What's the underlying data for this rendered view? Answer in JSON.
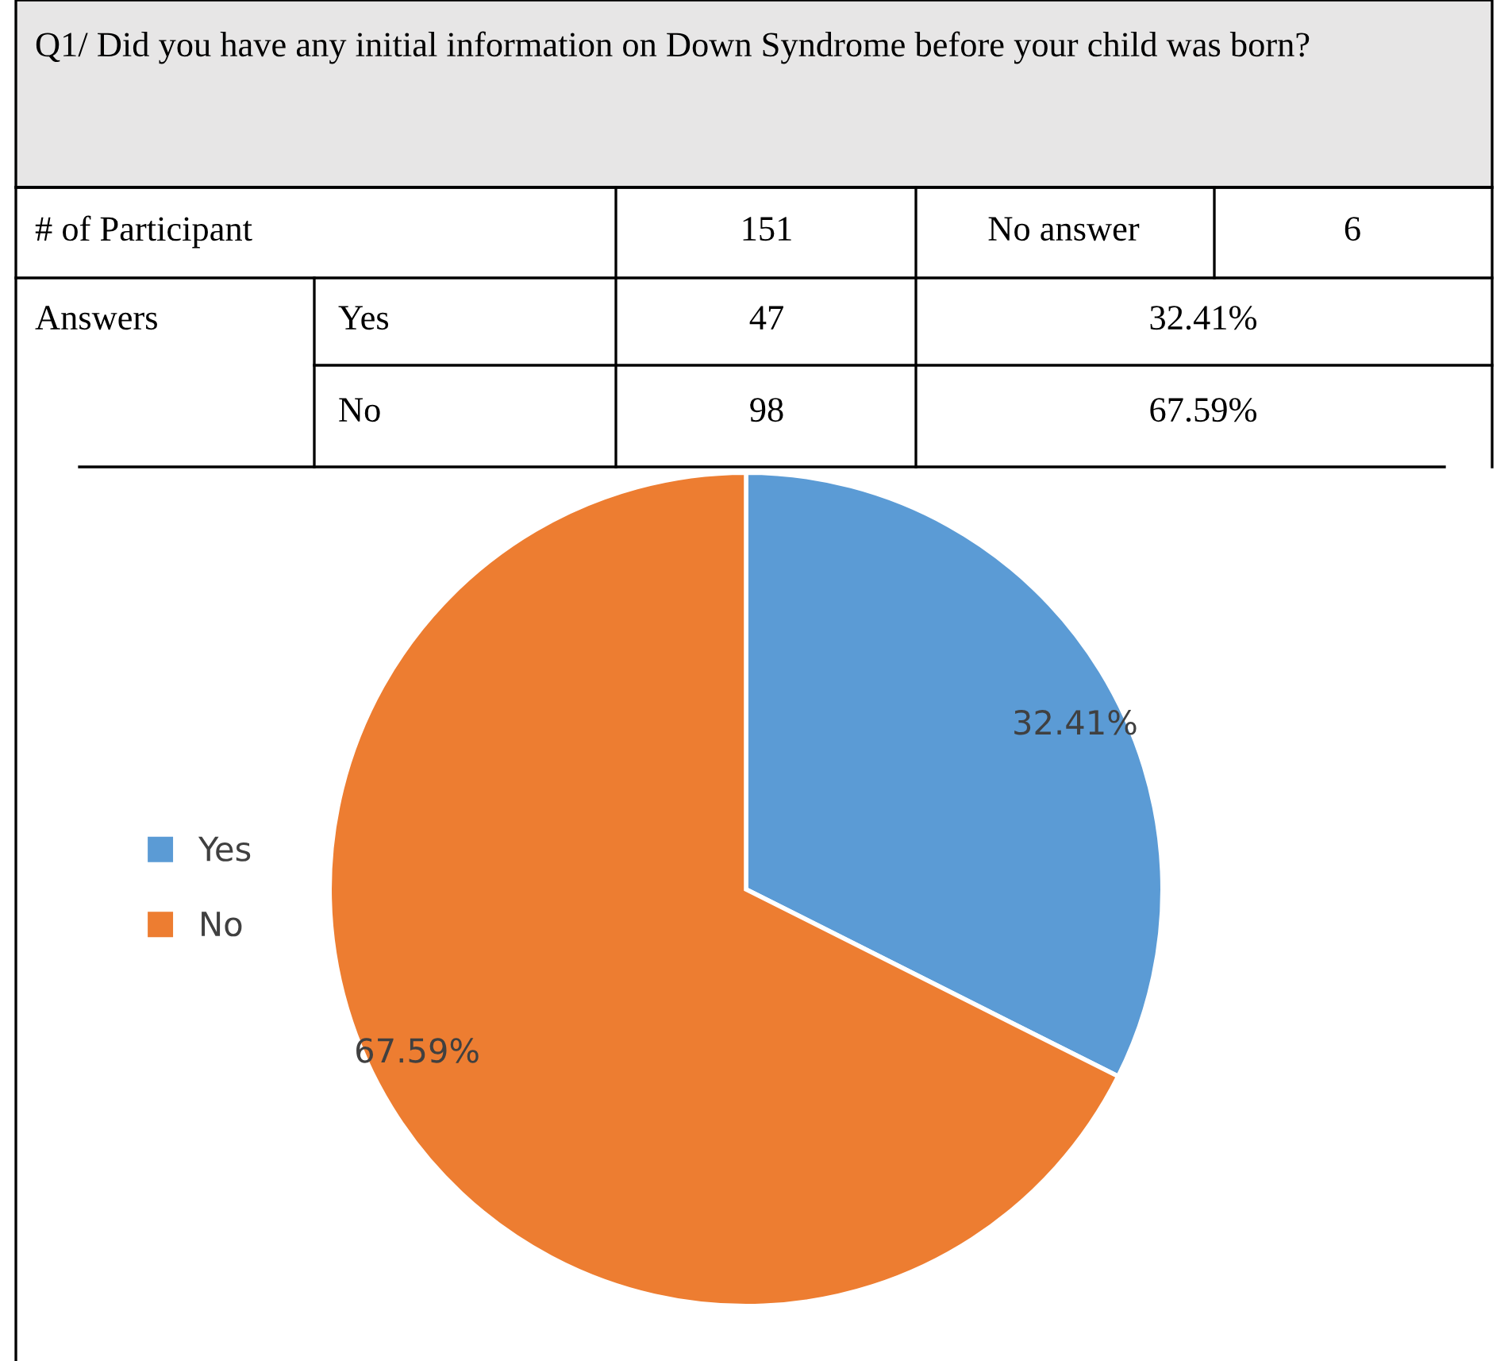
{
  "chart_data": {
    "type": "pie",
    "title": "Q1/ Did you have any initial information on Down Syndrome before your child was born?",
    "categories": [
      "Yes",
      "No"
    ],
    "values": [
      32.41,
      67.59
    ],
    "colors": [
      "#5b9bd5",
      "#ed7d31"
    ],
    "value_labels": [
      "32.41%",
      "67.59%"
    ],
    "legend": "left",
    "annotations": [
      "# of Participant",
      "151",
      "No answer",
      "6",
      "Answers",
      "Yes",
      "47",
      "32.41%",
      "No",
      "98",
      "67.59%"
    ]
  }
}
